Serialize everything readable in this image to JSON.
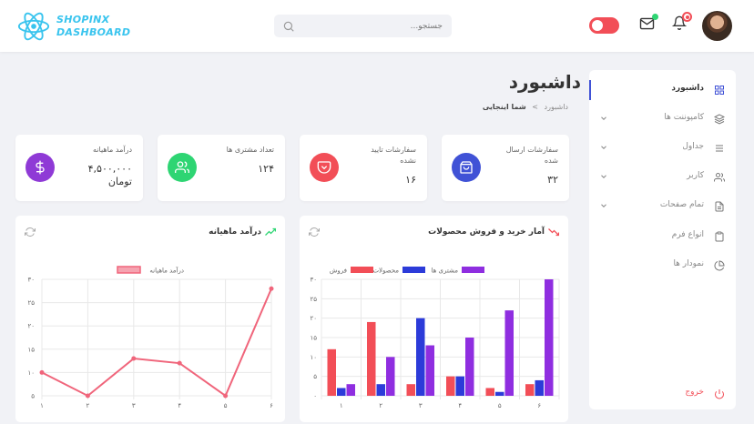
{
  "brand": {
    "line1": "SHOPINX",
    "line2": "DASHBOARD"
  },
  "search": {
    "placeholder": "جستجو..."
  },
  "sidebar": {
    "items": [
      {
        "label": "داشبورد",
        "icon": "grid-icon",
        "active": true,
        "chevron": false
      },
      {
        "label": "کامپوننت ها",
        "icon": "layers-icon",
        "active": false,
        "chevron": true
      },
      {
        "label": "جداول",
        "icon": "list-icon",
        "active": false,
        "chevron": true
      },
      {
        "label": "کاربر",
        "icon": "users-icon",
        "active": false,
        "chevron": true
      },
      {
        "label": "تمام صفحات",
        "icon": "file-icon",
        "active": false,
        "chevron": true
      },
      {
        "label": "انواع فرم",
        "icon": "clipboard-icon",
        "active": false,
        "chevron": false
      },
      {
        "label": "نمودار ها",
        "icon": "pie-chart-icon",
        "active": false,
        "chevron": false
      }
    ],
    "logout": "خروج"
  },
  "page": {
    "title": "داشبورد",
    "breadcrumb": {
      "root": "داشبورد",
      "separator": ">",
      "current": "شما اینجایی"
    }
  },
  "stats": [
    {
      "title": "سفارشات ارسال شده",
      "value": "۳۲",
      "icon": "bag-icon",
      "color": "#4052d6"
    },
    {
      "title": "سفارشات تایید نشده",
      "value": "۱۶",
      "icon": "pocket-icon",
      "color": "#f24e57"
    },
    {
      "title": "تعداد مشتری ها",
      "value": "۱۲۴",
      "icon": "users-icon",
      "color": "#2ed573"
    },
    {
      "title": "درآمد ماهیانه",
      "value": "۴,۵۰۰,۰۰۰",
      "value2": "تومان",
      "icon": "dollar-icon",
      "color": "#8f3ad6"
    }
  ],
  "colors": {
    "sales": "#f24e57",
    "products": "#2c3bd9",
    "customers": "#8f2ee0",
    "revenue_line": "#f0657b",
    "accent": "#4052d6"
  },
  "chart_data": [
    {
      "type": "bar",
      "title": "آمار خرید و فروش محصولات",
      "categories": [
        "۱",
        "۲",
        "۳",
        "۴",
        "۵",
        "۶"
      ],
      "ylim": [
        0,
        30
      ],
      "yticks": [
        "۰",
        "۵",
        "۱۰",
        "۱۵",
        "۲۰",
        "۲۵",
        "۳۰"
      ],
      "legend_position": "top",
      "series": [
        {
          "name": "فروش",
          "color": "#f24e57",
          "values": [
            12,
            19,
            3,
            5,
            2,
            3
          ]
        },
        {
          "name": "محصولات",
          "color": "#2c3bd9",
          "values": [
            2,
            3,
            20,
            5,
            1,
            4
          ]
        },
        {
          "name": "مشتری ها",
          "color": "#8f2ee0",
          "values": [
            3,
            10,
            13,
            15,
            22,
            30
          ]
        }
      ]
    },
    {
      "type": "line",
      "title": "درآمد ماهیانه",
      "categories": [
        "۱",
        "۲",
        "۳",
        "۴",
        "۵",
        "۶"
      ],
      "ylim": [
        5,
        30
      ],
      "yticks": [
        "۵",
        "۱۰",
        "۱۵",
        "۲۰",
        "۲۵",
        "۳۰"
      ],
      "legend_position": "top",
      "series": [
        {
          "name": "درآمد ماهیانه",
          "color": "#f0657b",
          "values": [
            10,
            5,
            13,
            12,
            5,
            28
          ]
        }
      ]
    }
  ]
}
